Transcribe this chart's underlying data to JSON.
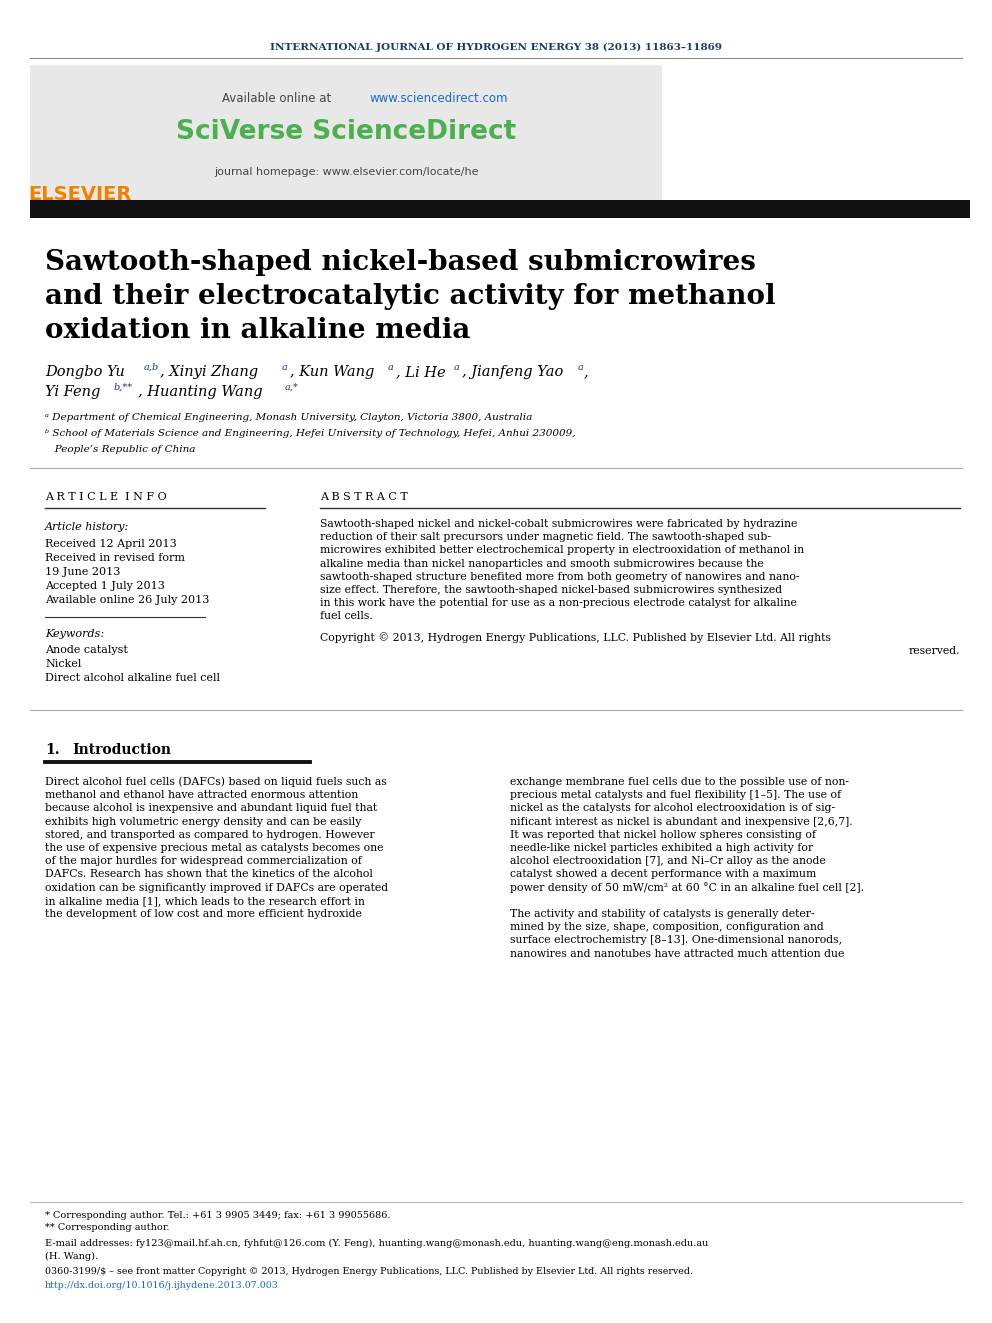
{
  "journal_header": "INTERNATIONAL JOURNAL OF HYDROGEN ENERGY 38 (2013) 11863–11869",
  "journal_header_color": "#1a3a6b",
  "sciverse_text": "SciVerse ScienceDirect",
  "sciverse_color": "#4caf50",
  "journal_homepage": "journal homepage: www.elsevier.com/locate/he",
  "article_info_header": "A R T I C L E  I N F O",
  "abstract_header": "A B S T R A C T",
  "article_history_label": "Article history:",
  "received1": "Received 12 April 2013",
  "received2": "Received in revised form",
  "received2b": "19 June 2013",
  "accepted": "Accepted 1 July 2013",
  "available": "Available online 26 July 2013",
  "keywords_label": "Keywords:",
  "keyword1": "Anode catalyst",
  "keyword2": "Nickel",
  "keyword3": "Direct alcohol alkaline fuel cell",
  "affil_a": "ᵃ Department of Chemical Engineering, Monash University, Clayton, Victoria 3800, Australia",
  "affil_b1": "ᵇ School of Materials Science and Engineering, Hefei University of Technology, Hefei, Anhui 230009,",
  "affil_b2": "   People’s Republic of China",
  "footnote1": "* Corresponding author. Tel.: +61 3 9905 3449; fax: +61 3 99055686.",
  "footnote2": "** Corresponding author.",
  "email_line1": "E-mail addresses: fy123@mail.hf.ah.cn, fyhfut@126.com (Y. Feng), huanting.wang@monash.edu, huanting.wang@eng.monash.edu.au",
  "email_line2": "(H. Wang).",
  "issn_line": "0360-3199/$ – see front matter Copyright © 2013, Hydrogen Energy Publications, LLC. Published by Elsevier Ltd. All rights reserved.",
  "doi_line": "http://dx.doi.org/10.1016/j.ijhydene.2013.07.003",
  "doi_color": "#1a6bbf",
  "black_bar_color": "#111111",
  "elsevier_color": "#f08000",
  "title_lines": [
    "Sawtooth-shaped nickel-based submicrowires",
    "and their electrocatalytic activity for methanol",
    "oxidation in alkaline media"
  ],
  "abstract_lines": [
    "Sawtooth-shaped nickel and nickel-cobalt submicrowires were fabricated by hydrazine",
    "reduction of their salt precursors under magnetic field. The sawtooth-shaped sub-",
    "microwires exhibited better electrochemical property in electrooxidation of methanol in",
    "alkaline media than nickel nanoparticles and smooth submicrowires because the",
    "sawtooth-shaped structure benefited more from both geometry of nanowires and nano-",
    "size effect. Therefore, the sawtooth-shaped nickel-based submicrowires synthesized",
    "in this work have the potential for use as a non-precious electrode catalyst for alkaline",
    "fuel cells."
  ],
  "copyright_line1": "Copyright © 2013, Hydrogen Energy Publications, LLC. Published by Elsevier Ltd. All rights",
  "copyright_line2": "reserved.",
  "intro_left_lines": [
    "Direct alcohol fuel cells (DAFCs) based on liquid fuels such as",
    "methanol and ethanol have attracted enormous attention",
    "because alcohol is inexpensive and abundant liquid fuel that",
    "exhibits high volumetric energy density and can be easily",
    "stored, and transported as compared to hydrogen. However",
    "the use of expensive precious metal as catalysts becomes one",
    "of the major hurdles for widespread commercialization of",
    "DAFCs. Research has shown that the kinetics of the alcohol",
    "oxidation can be significantly improved if DAFCs are operated",
    "in alkaline media [1], which leads to the research effort in",
    "the development of low cost and more efficient hydroxide"
  ],
  "intro_right_lines": [
    "exchange membrane fuel cells due to the possible use of non-",
    "precious metal catalysts and fuel flexibility [1–5]. The use of",
    "nickel as the catalysts for alcohol electrooxidation is of sig-",
    "nificant interest as nickel is abundant and inexpensive [2,6,7].",
    "It was reported that nickel hollow spheres consisting of",
    "needle-like nickel particles exhibited a high activity for",
    "alcohol electrooxidation [7], and Ni–Cr alloy as the anode",
    "catalyst showed a decent performance with a maximum",
    "power density of 50 mW/cm² at 60 °C in an alkaline fuel cell [2].",
    "",
    "The activity and stability of catalysts is generally deter-",
    "mined by the size, shape, composition, configuration and",
    "surface electrochemistry [8–13]. One-dimensional nanorods,",
    "nanowires and nanotubes have attracted much attention due"
  ]
}
